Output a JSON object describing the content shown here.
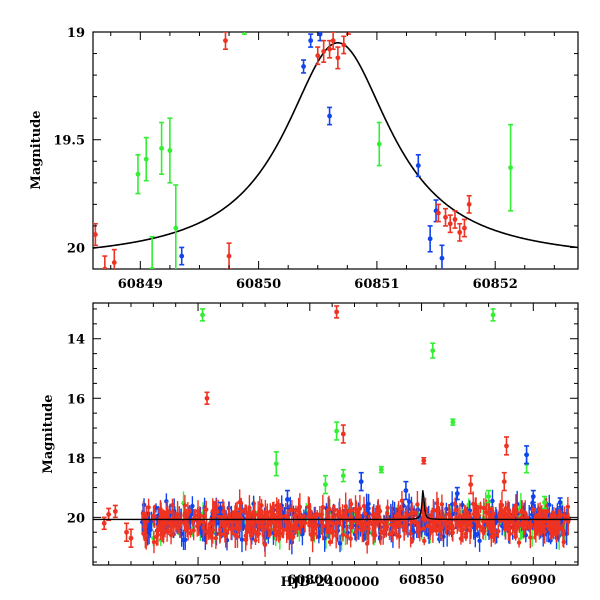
{
  "chart_data": [
    {
      "type": "scatter",
      "panel": "top",
      "title": "",
      "xlabel": "",
      "ylabel": "Magnitude",
      "xlim": [
        60848.6,
        60852.7
      ],
      "ylim": [
        19.0,
        20.1
      ],
      "y_inverted": true,
      "xticks": [
        60849,
        60850,
        60851,
        60852
      ],
      "xtick_labels": [
        "60849",
        "60850",
        "60851",
        "60852"
      ],
      "yticks": [
        19,
        19.5,
        20
      ],
      "ytick_labels": [
        "19",
        "19.5",
        "20"
      ],
      "colors": {
        "green": "#33ee33",
        "red": "#ee3322",
        "blue": "#1144ee",
        "model": "#000000"
      },
      "model_curve": {
        "type": "lorentzian",
        "x0": 60850.67,
        "peak_mag": 19.05,
        "base_mag": 20.07,
        "width": 0.55
      },
      "series": [
        {
          "color_key": "green",
          "points": [
            [
              60848.98,
              19.66,
              0.09
            ],
            [
              60849.05,
              19.59,
              0.1
            ],
            [
              60849.18,
              19.54,
              0.12
            ],
            [
              60849.25,
              19.55,
              0.15
            ],
            [
              60849.3,
              19.91,
              0.2
            ],
            [
              60849.1,
              20.1,
              0.15
            ],
            [
              60849.88,
              18.95,
              0.06
            ],
            [
              60851.02,
              19.52,
              0.1
            ],
            [
              60852.13,
              19.63,
              0.2
            ]
          ]
        },
        {
          "color_key": "red",
          "points": [
            [
              60848.62,
              19.94,
              0.05
            ],
            [
              60848.7,
              20.1,
              0.06
            ],
            [
              60848.78,
              20.07,
              0.06
            ],
            [
              60849.72,
              19.04,
              0.04
            ],
            [
              60849.75,
              20.04,
              0.06
            ],
            [
              60850.5,
              19.11,
              0.04
            ],
            [
              60850.55,
              19.09,
              0.05
            ],
            [
              60850.6,
              19.08,
              0.04
            ],
            [
              60850.63,
              19.04,
              0.04
            ],
            [
              60850.67,
              19.12,
              0.05
            ],
            [
              60850.72,
              19.06,
              0.04
            ],
            [
              60850.76,
              18.98,
              0.03
            ],
            [
              60850.8,
              18.89,
              0.03
            ],
            [
              60851.52,
              19.84,
              0.04
            ],
            [
              60851.58,
              19.86,
              0.04
            ],
            [
              60851.62,
              19.89,
              0.04
            ],
            [
              60851.66,
              19.87,
              0.04
            ],
            [
              60851.7,
              19.93,
              0.04
            ],
            [
              60851.74,
              19.91,
              0.04
            ],
            [
              60851.78,
              19.8,
              0.04
            ]
          ]
        },
        {
          "color_key": "blue",
          "points": [
            [
              60849.35,
              20.04,
              0.04
            ],
            [
              60850.38,
              19.16,
              0.03
            ],
            [
              60850.44,
              19.04,
              0.03
            ],
            [
              60850.52,
              19.01,
              0.03
            ],
            [
              60850.6,
              19.39,
              0.04
            ],
            [
              60851.35,
              19.62,
              0.05
            ],
            [
              60851.45,
              19.96,
              0.06
            ],
            [
              60851.5,
              19.83,
              0.05
            ],
            [
              60851.55,
              20.05,
              0.06
            ]
          ]
        }
      ]
    },
    {
      "type": "scatter",
      "panel": "bottom",
      "title": "",
      "xlabel": "HJD-2400000",
      "ylabel": "Magnitude",
      "xlim": [
        60703,
        60920
      ],
      "ylim": [
        12.8,
        21.6
      ],
      "y_inverted": true,
      "xticks": [
        60750,
        60800,
        60850,
        60900
      ],
      "xtick_labels": [
        "60750",
        "60800",
        "60850",
        "60900"
      ],
      "yticks": [
        14,
        16,
        18,
        20
      ],
      "ytick_labels": [
        "14",
        "16",
        "18",
        "20"
      ],
      "colors": {
        "green": "#33ee33",
        "red": "#ee3322",
        "blue": "#1144ee",
        "model": "#000000"
      },
      "model_curve": {
        "type": "lorentzian",
        "x0": 60850.67,
        "peak_mag": 19.05,
        "base_mag": 20.07,
        "width": 0.55
      },
      "dense_band": {
        "x_start": 60725,
        "x_end": 60916,
        "center_mag": 20.15,
        "spread": 0.35
      },
      "series": [
        {
          "color_key": "green",
          "points": [
            [
              60752,
              13.2,
              0.2
            ],
            [
              60882,
              13.2,
              0.2
            ],
            [
              60855,
              14.4,
              0.25
            ],
            [
              60864,
              16.8,
              0.1
            ],
            [
              60812,
              17.1,
              0.3
            ],
            [
              60785,
              18.2,
              0.4
            ],
            [
              60897,
              18.2,
              0.3
            ],
            [
              60832,
              18.4,
              0.1
            ],
            [
              60815,
              18.6,
              0.2
            ],
            [
              60807,
              18.9,
              0.3
            ],
            [
              60880,
              19.3,
              0.2
            ],
            [
              60905,
              19.5,
              0.2
            ]
          ]
        },
        {
          "color_key": "red",
          "points": [
            [
              60812,
              13.1,
              0.2
            ],
            [
              60754,
              16.0,
              0.2
            ],
            [
              60815,
              17.2,
              0.3
            ],
            [
              60888,
              17.6,
              0.3
            ],
            [
              60851,
              18.1,
              0.1
            ],
            [
              60708,
              20.2,
              0.2
            ],
            [
              60710,
              19.9,
              0.2
            ],
            [
              60713,
              19.8,
              0.2
            ],
            [
              60718,
              20.5,
              0.3
            ],
            [
              60720,
              20.7,
              0.3
            ],
            [
              60887,
              18.8,
              0.3
            ],
            [
              60872,
              18.9,
              0.3
            ]
          ]
        },
        {
          "color_key": "blue",
          "points": [
            [
              60897,
              17.9,
              0.3
            ],
            [
              60912,
              19.5,
              0.15
            ],
            [
              60823,
              18.8,
              0.3
            ],
            [
              60843,
              19.1,
              0.3
            ],
            [
              60866,
              19.2,
              0.2
            ],
            [
              60790,
              19.4,
              0.3
            ],
            [
              60900,
              19.3,
              0.2
            ],
            [
              60760,
              19.7,
              0.2
            ]
          ]
        }
      ]
    }
  ]
}
